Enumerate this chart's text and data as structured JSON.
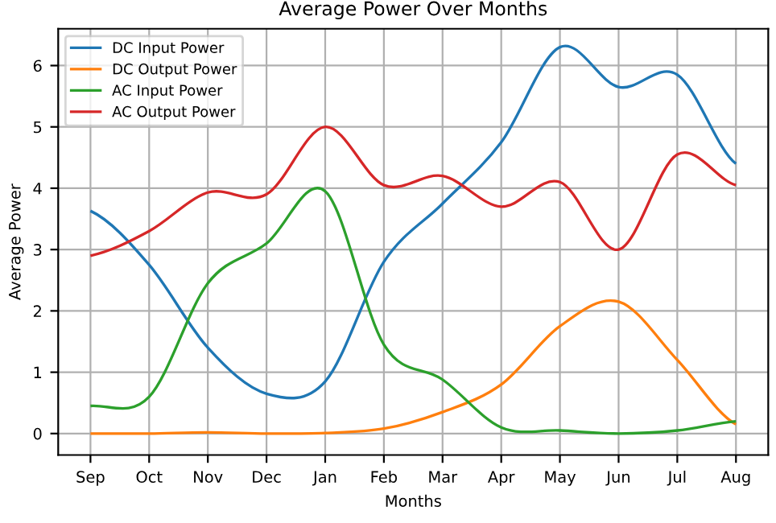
{
  "chart_data": {
    "type": "line",
    "title": "Average Power Over Months",
    "xlabel": "Months",
    "ylabel": "Average Power",
    "categories": [
      "Sep",
      "Oct",
      "Nov",
      "Dec",
      "Jan",
      "Feb",
      "Mar",
      "Apr",
      "May",
      "Jun",
      "Jul",
      "Aug"
    ],
    "ylim": [
      -0.35,
      6.6
    ],
    "yticks": [
      0,
      1,
      2,
      3,
      4,
      5,
      6
    ],
    "grid": true,
    "legend": "top left",
    "series": [
      {
        "name": "DC Input Power",
        "color": "#1f77b4",
        "values": [
          3.63,
          2.75,
          1.4,
          0.65,
          0.85,
          2.8,
          3.75,
          4.75,
          6.3,
          5.65,
          5.85,
          4.4
        ]
      },
      {
        "name": "DC Output Power",
        "color": "#ff7f0e",
        "values": [
          0,
          0,
          0.02,
          0,
          0.01,
          0.08,
          0.35,
          0.8,
          1.75,
          2.15,
          1.2,
          0.15
        ]
      },
      {
        "name": "AC Input Power",
        "color": "#2ca02c",
        "values": [
          0.45,
          0.6,
          2.45,
          3.1,
          3.95,
          1.45,
          0.88,
          0.1,
          0.05,
          0,
          0.05,
          0.2
        ]
      },
      {
        "name": "AC Output Power",
        "color": "#d62728",
        "values": [
          2.9,
          3.3,
          3.93,
          3.9,
          5.0,
          4.05,
          4.2,
          3.7,
          4.1,
          3.0,
          4.55,
          4.05
        ]
      }
    ]
  }
}
